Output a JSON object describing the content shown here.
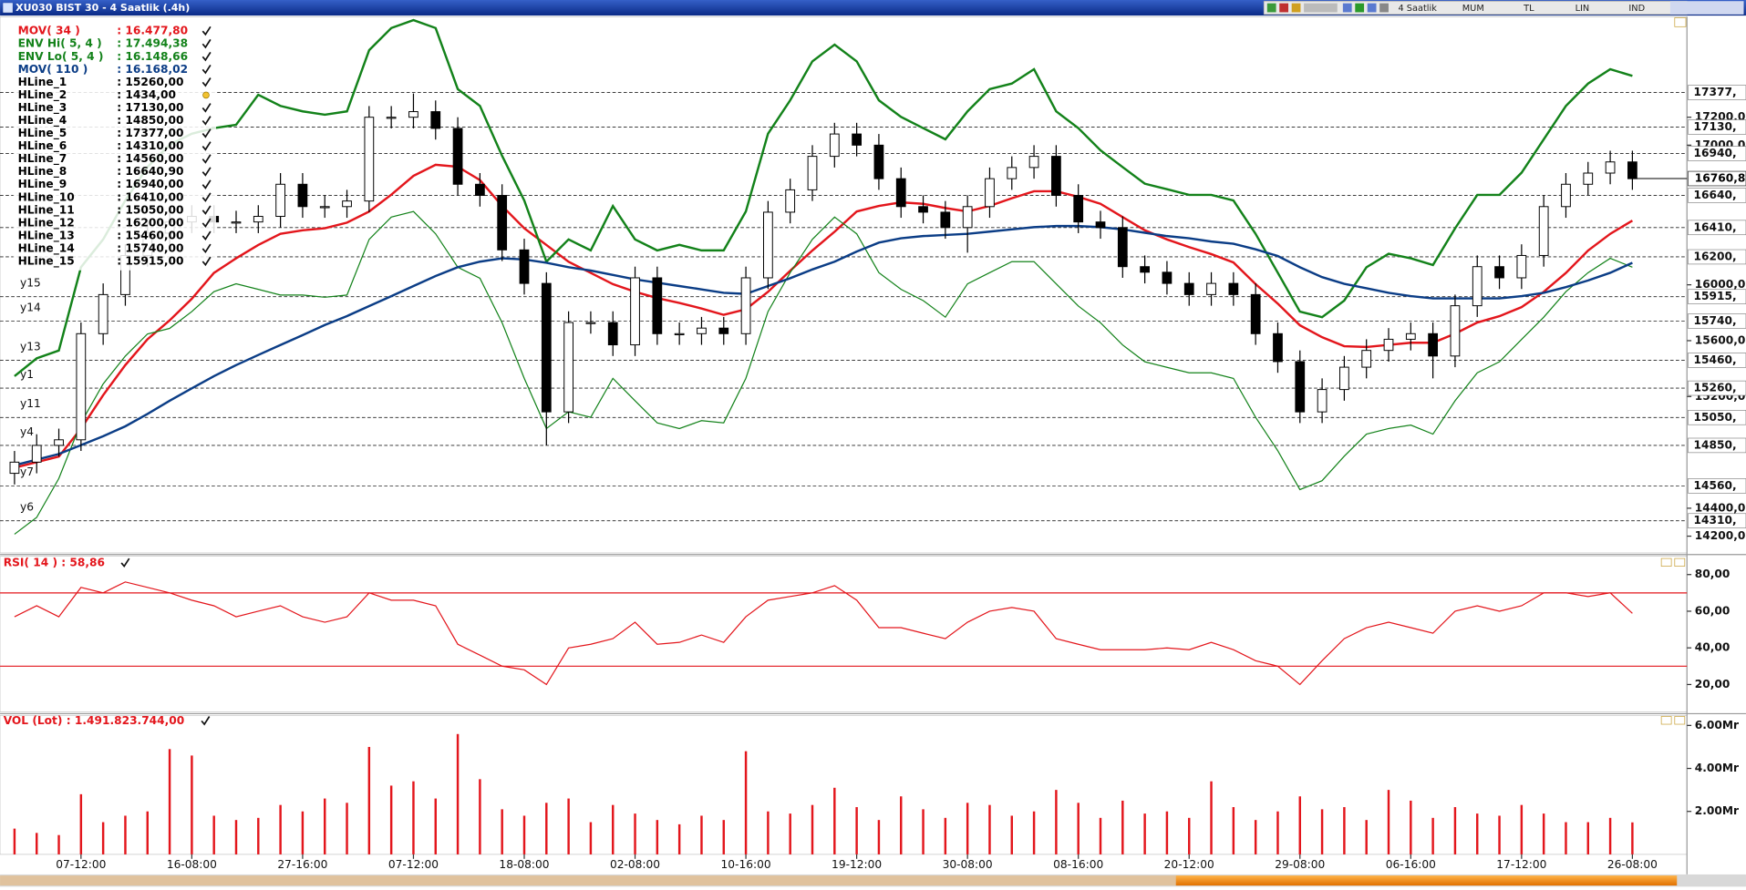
{
  "window": {
    "title": "XU030 BIST 30 - 4 Saatlik (.4h)",
    "toolbar": [
      "4 Saatlik",
      "MUM",
      "TL",
      "LIN",
      "IND"
    ]
  },
  "chart_data": [
    {
      "type": "candlestick",
      "open": [
        14650,
        14730,
        14850,
        14890,
        15650,
        15930,
        16210,
        16370,
        16450,
        16490,
        16450,
        16450,
        16490,
        16720,
        16560,
        16560,
        16600,
        17200,
        17200,
        17240,
        17120,
        16720,
        16640,
        16250,
        16010,
        15090,
        15730,
        15730,
        15570,
        16050,
        15650,
        15650,
        15690,
        15650,
        16050,
        16520,
        16680,
        16920,
        17080,
        17000,
        16760,
        16560,
        16520,
        16410,
        16560,
        16760,
        16840,
        16920,
        16640,
        16450,
        16410,
        16130,
        16090,
        16010,
        15930,
        16010,
        15930,
        15650,
        15450,
        15090,
        15250,
        15410,
        15530,
        15610,
        15650,
        15490,
        15850,
        16130,
        16050,
        16210,
        16560,
        16720,
        16800,
        16880
      ],
      "high": [
        14810,
        14930,
        14970,
        15730,
        16010,
        16290,
        16450,
        16530,
        16570,
        16570,
        16530,
        16570,
        16800,
        16800,
        16640,
        16680,
        17280,
        17280,
        17370,
        17320,
        17200,
        16800,
        16720,
        16330,
        16090,
        15810,
        15810,
        15810,
        16130,
        16130,
        15730,
        15770,
        15770,
        16130,
        16600,
        16760,
        17000,
        17160,
        17160,
        17080,
        16840,
        16640,
        16600,
        16640,
        16840,
        16920,
        17000,
        17000,
        16720,
        16530,
        16490,
        16210,
        16170,
        16090,
        16090,
        16090,
        16010,
        15730,
        15530,
        15330,
        15490,
        15610,
        15690,
        15730,
        15730,
        15930,
        16210,
        16210,
        16290,
        16640,
        16800,
        16880,
        16960,
        16960
      ],
      "low": [
        14570,
        14650,
        14770,
        14810,
        15570,
        15850,
        16130,
        16290,
        16370,
        16370,
        16370,
        16370,
        16410,
        16480,
        16480,
        16480,
        16520,
        17120,
        17120,
        17040,
        16640,
        16560,
        16170,
        15930,
        14850,
        15010,
        15650,
        15490,
        15490,
        15570,
        15570,
        15570,
        15570,
        15570,
        15970,
        16440,
        16600,
        16840,
        16920,
        16680,
        16480,
        16440,
        16330,
        16230,
        16480,
        16680,
        16760,
        16560,
        16370,
        16330,
        16050,
        16010,
        15930,
        15850,
        15850,
        15850,
        15570,
        15370,
        15010,
        15010,
        15170,
        15330,
        15450,
        15530,
        15330,
        15410,
        15770,
        15970,
        15970,
        16130,
        16480,
        16640,
        16720,
        16680
      ],
      "close": [
        14730,
        14850,
        14890,
        15650,
        15930,
        16210,
        16370,
        16450,
        16490,
        16450,
        16450,
        16490,
        16720,
        16560,
        16560,
        16600,
        17200,
        17200,
        17240,
        17120,
        16720,
        16640,
        16250,
        16010,
        15090,
        15730,
        15730,
        15570,
        16050,
        15650,
        15650,
        15690,
        15650,
        16050,
        16520,
        16680,
        16920,
        17080,
        17000,
        16760,
        16560,
        16520,
        16410,
        16560,
        16760,
        16840,
        16920,
        16640,
        16450,
        16410,
        16130,
        16090,
        16010,
        15930,
        16010,
        15930,
        15650,
        15450,
        15090,
        15250,
        15410,
        15530,
        15610,
        15650,
        15490,
        15850,
        16130,
        16050,
        16210,
        16560,
        16720,
        16800,
        16880,
        16760
      ],
      "up_color": "#ffffff",
      "down_color": "#000000",
      "series": [
        {
          "name": "MOV( 34 )",
          "value_label": ": 16.477,80",
          "color": "#e3161c",
          "width": 2,
          "values": [
            14690,
            14730,
            14770,
            14970,
            15210,
            15425,
            15610,
            15745,
            15900,
            16085,
            16190,
            16285,
            16365,
            16390,
            16405,
            16445,
            16525,
            16645,
            16780,
            16860,
            16845,
            16750,
            16565,
            16405,
            16285,
            16165,
            16085,
            16005,
            15950,
            15905,
            15870,
            15830,
            15785,
            15825,
            15950,
            16100,
            16245,
            16380,
            16525,
            16565,
            16590,
            16580,
            16550,
            16525,
            16565,
            16620,
            16670,
            16670,
            16630,
            16580,
            16485,
            16390,
            16325,
            16270,
            16220,
            16160,
            16005,
            15865,
            15710,
            15625,
            15560,
            15555,
            15570,
            15585,
            15585,
            15650,
            15730,
            15775,
            15840,
            15950,
            16085,
            16245,
            16365,
            16460
          ]
        },
        {
          "name": "ENV Hi( 5, 4 )",
          "value_label": ": 17.494,38",
          "color": "#13821a",
          "width": 2,
          "values": [
            15346,
            15473,
            15529,
            16126,
            16325,
            16604,
            16843,
            17003,
            17082,
            17122,
            17146,
            17361,
            17281,
            17242,
            17218,
            17242,
            17680,
            17839,
            17895,
            17839,
            17401,
            17281,
            16923,
            16604,
            16166,
            16325,
            16246,
            16564,
            16325,
            16246,
            16286,
            16246,
            16246,
            16525,
            17082,
            17321,
            17600,
            17720,
            17600,
            17321,
            17202,
            17122,
            17042,
            17242,
            17401,
            17441,
            17544,
            17242,
            17122,
            16963,
            16843,
            16724,
            16684,
            16644,
            16644,
            16604,
            16365,
            16087,
            15808,
            15768,
            15887,
            16126,
            16222,
            16190,
            16142,
            16405,
            16644,
            16644,
            16803,
            17042,
            17281,
            17441,
            17544,
            17496
          ]
        },
        {
          "name": "ENV Lo( 5, 4 )",
          "value_label": ": 16.148,66",
          "color": "#13821a",
          "width": 1,
          "values": [
            14214,
            14334,
            14613,
            15011,
            15290,
            15489,
            15648,
            15688,
            15808,
            15951,
            16007,
            15967,
            15927,
            15927,
            15911,
            15927,
            16325,
            16485,
            16525,
            16365,
            16126,
            16047,
            15728,
            15330,
            14971,
            15091,
            15051,
            15330,
            15170,
            15011,
            14971,
            15027,
            15011,
            15330,
            15808,
            16087,
            16325,
            16485,
            16365,
            16087,
            15967,
            15887,
            15768,
            16007,
            16087,
            16166,
            16166,
            16007,
            15848,
            15728,
            15569,
            15449,
            15409,
            15370,
            15370,
            15330,
            15051,
            14812,
            14533,
            14597,
            14772,
            14931,
            14971,
            14995,
            14931,
            15170,
            15370,
            15449,
            15609,
            15768,
            15951,
            16087,
            16190,
            16126
          ]
        },
        {
          "name": "MOV( 110 )",
          "value_label": ": 16.168,02",
          "color": "#0b3d86",
          "width": 2,
          "values": [
            14708,
            14748,
            14788,
            14852,
            14916,
            14987,
            15075,
            15170,
            15258,
            15346,
            15425,
            15497,
            15569,
            15640,
            15712,
            15776,
            15848,
            15919,
            15991,
            16063,
            16126,
            16166,
            16190,
            16182,
            16158,
            16126,
            16102,
            16071,
            16039,
            16015,
            15991,
            15967,
            15943,
            15935,
            15991,
            16047,
            16110,
            16166,
            16238,
            16302,
            16333,
            16349,
            16357,
            16365,
            16381,
            16397,
            16413,
            16421,
            16421,
            16413,
            16397,
            16373,
            16349,
            16333,
            16310,
            16294,
            16254,
            16206,
            16126,
            16055,
            16007,
            15975,
            15943,
            15919,
            15903,
            15903,
            15903,
            15903,
            15919,
            15943,
            15983,
            16031,
            16086,
            16158
          ]
        }
      ],
      "hlines": [
        {
          "name": "HLine_1",
          "value": 15260,
          "value_label": ": 15260,00",
          "axis_label": "15260,",
          "tag": "y1",
          "enabled": true
        },
        {
          "name": "HLine_2",
          "value": 1434,
          "value_label": ": 1434,00",
          "enabled": false
        },
        {
          "name": "HLine_3",
          "value": 17130,
          "value_label": ": 17130,00",
          "axis_label": "17130,",
          "enabled": true
        },
        {
          "name": "HLine_4",
          "value": 14850,
          "value_label": ": 14850,00",
          "axis_label": "14850,",
          "tag": "y4",
          "enabled": true
        },
        {
          "name": "HLine_5",
          "value": 17377,
          "value_label": ": 17377,00",
          "axis_label": "17377,",
          "enabled": true
        },
        {
          "name": "HLine_6",
          "value": 14310,
          "value_label": ": 14310,00",
          "axis_label": "14310,",
          "tag": "y6",
          "enabled": true
        },
        {
          "name": "HLine_7",
          "value": 14560,
          "value_label": ": 14560,00",
          "axis_label": "14560,",
          "tag": "y7",
          "enabled": true
        },
        {
          "name": "HLine_8",
          "value": 16640.9,
          "value_label": ": 16640,90",
          "axis_label": "16640,",
          "enabled": true
        },
        {
          "name": "HLine_9",
          "value": 16940,
          "value_label": ": 16940,00",
          "axis_label": "16940,",
          "enabled": true
        },
        {
          "name": "HLine_10",
          "value": 16410,
          "value_label": ": 16410,00",
          "axis_label": "16410,",
          "enabled": true
        },
        {
          "name": "HLine_11",
          "value": 15050,
          "value_label": ": 15050,00",
          "axis_label": "15050,",
          "tag": "y11",
          "enabled": true
        },
        {
          "name": "HLine_12",
          "value": 16200,
          "value_label": ": 16200,00",
          "axis_label": "16200,",
          "enabled": true
        },
        {
          "name": "HLine_13",
          "value": 15460,
          "value_label": ": 15460,00",
          "axis_label": "15460,",
          "tag": "y13",
          "enabled": true
        },
        {
          "name": "HLine_14",
          "value": 15740,
          "value_label": ": 15740,00",
          "axis_label": "15740,",
          "tag": "y14",
          "enabled": true
        },
        {
          "name": "HLine_15",
          "value": 15915,
          "value_label": ": 15915,00",
          "axis_label": "15915,",
          "tag": "y15",
          "enabled": true
        }
      ],
      "last_price": {
        "value": 16760.8,
        "label": "16760,8"
      },
      "ylim": [
        14080,
        17920
      ],
      "yticks": [
        {
          "value": 17200,
          "label": "17200,0"
        },
        {
          "value": 17000,
          "label": "17000,0"
        },
        {
          "value": 16000,
          "label": "16000,0"
        },
        {
          "value": 15600,
          "label": "15600,0"
        },
        {
          "value": 15200,
          "label": "15200,0"
        },
        {
          "value": 14400,
          "label": "14400,0"
        },
        {
          "value": 14200,
          "label": "14200,00"
        }
      ]
    },
    {
      "type": "line",
      "title": "RSI( 14 ) : 58,86",
      "color": "#e3161c",
      "values": [
        57,
        63,
        57,
        73,
        70,
        76,
        73,
        70,
        66,
        63,
        57,
        60,
        63,
        57,
        54,
        57,
        70,
        66,
        66,
        63,
        42,
        36,
        30,
        28,
        20,
        40,
        42,
        45,
        54,
        42,
        43,
        47,
        43,
        57,
        66,
        68,
        70,
        74,
        66,
        51,
        51,
        48,
        45,
        54,
        60,
        62,
        60,
        45,
        42,
        39,
        39,
        39,
        40,
        39,
        43,
        39,
        33,
        30,
        20,
        33,
        45,
        51,
        54,
        51,
        48,
        60,
        63,
        60,
        63,
        70,
        70,
        68,
        70,
        58.86
      ],
      "levels": [
        70,
        30
      ],
      "ylim": [
        5,
        90
      ],
      "yticks": [
        {
          "value": 80,
          "label": "80,00"
        },
        {
          "value": 60,
          "label": "60,00"
        },
        {
          "value": 40,
          "label": "40,00"
        },
        {
          "value": 20,
          "label": "20,00"
        }
      ]
    },
    {
      "type": "bar",
      "title": "VOL (Lot) : 1.491.823.744,00",
      "color": "#e3161c",
      "categories": [
        null,
        null,
        null,
        "07-12:00",
        null,
        null,
        null,
        null,
        "16-08:00",
        null,
        null,
        null,
        null,
        "27-16:00",
        null,
        null,
        null,
        null,
        "07-12:00",
        null,
        null,
        null,
        null,
        "18-08:00",
        null,
        null,
        null,
        null,
        "02-08:00",
        null,
        null,
        null,
        null,
        "10-16:00",
        null,
        null,
        null,
        null,
        "19-12:00",
        null,
        null,
        null,
        null,
        "30-08:00",
        null,
        null,
        null,
        null,
        "08-16:00",
        null,
        null,
        null,
        null,
        "20-12:00",
        null,
        null,
        null,
        null,
        "29-08:00",
        null,
        null,
        null,
        null,
        "06-16:00",
        null,
        null,
        null,
        null,
        "17-12:00",
        null,
        null,
        null,
        null,
        "26-08:00"
      ],
      "values": [
        1.2,
        1.0,
        0.9,
        2.8,
        1.5,
        1.8,
        2.0,
        4.9,
        4.6,
        1.8,
        1.6,
        1.7,
        2.3,
        2.0,
        2.6,
        2.4,
        5.0,
        3.2,
        3.4,
        2.6,
        5.6,
        3.5,
        2.1,
        1.8,
        2.4,
        2.6,
        1.5,
        2.3,
        1.9,
        1.6,
        1.4,
        1.8,
        1.6,
        4.8,
        2.0,
        1.9,
        2.3,
        3.1,
        2.2,
        1.6,
        2.7,
        2.1,
        1.7,
        2.4,
        2.3,
        1.8,
        2.0,
        3.0,
        2.4,
        1.7,
        2.5,
        1.9,
        2.0,
        1.7,
        3.4,
        2.2,
        1.6,
        2.0,
        2.7,
        2.1,
        2.2,
        1.6,
        3.0,
        2.5,
        1.7,
        2.2,
        1.9,
        1.8,
        2.3,
        1.9,
        1.5,
        1.5,
        1.7,
        1.49
      ],
      "ylim": [
        0,
        6.47
      ],
      "yticks": [
        {
          "value": 2,
          "label": "2.00Mr"
        },
        {
          "value": 4,
          "label": "4.00Mr"
        },
        {
          "value": 6,
          "label": "6.00Mr"
        }
      ]
    }
  ]
}
